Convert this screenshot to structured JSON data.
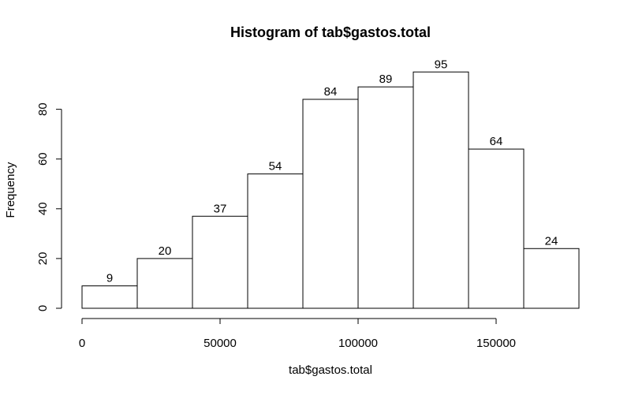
{
  "chart_data": {
    "type": "bar",
    "subtype": "histogram",
    "title": "Histogram of tab$gastos.total",
    "xlabel": "tab$gastos.total",
    "ylabel": "Frequency",
    "bins": [
      {
        "start": 0,
        "end": 20000,
        "count": 9
      },
      {
        "start": 20000,
        "end": 40000,
        "count": 20
      },
      {
        "start": 40000,
        "end": 60000,
        "count": 37
      },
      {
        "start": 60000,
        "end": 80000,
        "count": 54
      },
      {
        "start": 80000,
        "end": 100000,
        "count": 84
      },
      {
        "start": 100000,
        "end": 120000,
        "count": 89
      },
      {
        "start": 120000,
        "end": 140000,
        "count": 95
      },
      {
        "start": 140000,
        "end": 160000,
        "count": 64
      },
      {
        "start": 160000,
        "end": 180000,
        "count": 24
      }
    ],
    "values": [
      9,
      20,
      37,
      54,
      84,
      89,
      95,
      64,
      24
    ],
    "xlim": [
      0,
      180000
    ],
    "ylim": [
      0,
      95
    ],
    "x_ticks": [
      0,
      50000,
      100000,
      150000
    ],
    "x_tick_labels": [
      "0",
      "50000",
      "100000",
      "150000"
    ],
    "y_ticks": [
      0,
      20,
      40,
      60,
      80
    ],
    "y_tick_labels": [
      "0",
      "20",
      "40",
      "60",
      "80"
    ],
    "bar_labels": [
      "9",
      "20",
      "37",
      "54",
      "84",
      "89",
      "95",
      "64",
      "24"
    ],
    "bar_color": "#ffffff",
    "edge_color": "#000000",
    "grid": false,
    "legend": false
  }
}
